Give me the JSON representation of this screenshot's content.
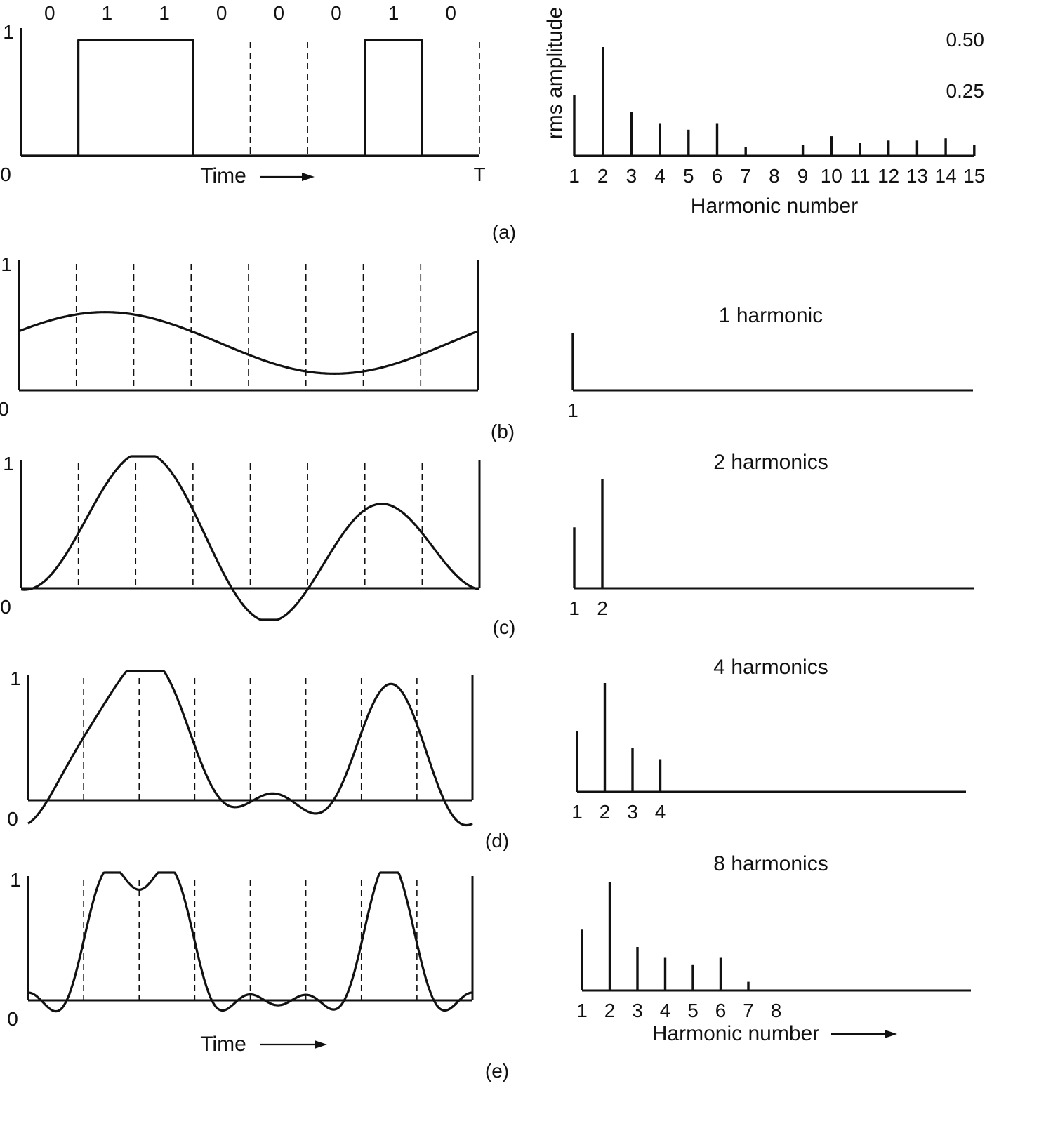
{
  "panels": [
    {
      "caption": "(a)",
      "time_plot": {
        "type": "step",
        "bits": [
          "0",
          "1",
          "1",
          "0",
          "0",
          "0",
          "1",
          "0"
        ],
        "y_top_label": "1",
        "origin_label": "0",
        "end_label": "T",
        "xlabel": "Time"
      },
      "spectrum": {
        "title": "",
        "ylabel": "rms amplitude",
        "ytick_labels": [
          "0.50",
          "0.25"
        ],
        "xlabel": "Harmonic number",
        "harmonic_labels": [
          "1",
          "2",
          "3",
          "4",
          "5",
          "6",
          "7",
          "8",
          "9",
          "10",
          "11",
          "12",
          "13",
          "14",
          "15"
        ]
      }
    },
    {
      "caption": "(b)",
      "time_plot": {
        "type": "approximation",
        "harmonics": 1,
        "y_top_label": "1",
        "origin_label": "0"
      },
      "spectrum": {
        "title": "1 harmonic",
        "harmonic_labels": [
          "1"
        ]
      }
    },
    {
      "caption": "(c)",
      "time_plot": {
        "type": "approximation",
        "harmonics": 2,
        "y_top_label": "1",
        "origin_label": "0"
      },
      "spectrum": {
        "title": "2 harmonics",
        "harmonic_labels": [
          "1",
          "2"
        ]
      }
    },
    {
      "caption": "(d)",
      "time_plot": {
        "type": "approximation",
        "harmonics": 4,
        "y_top_label": "1",
        "origin_label": "0"
      },
      "spectrum": {
        "title": "4 harmonics",
        "harmonic_labels": [
          "1",
          "2",
          "3",
          "4"
        ]
      }
    },
    {
      "caption": "(e)",
      "time_plot": {
        "type": "approximation",
        "harmonics": 8,
        "y_top_label": "1",
        "origin_label": "0",
        "xlabel": "Time"
      },
      "spectrum": {
        "title": "8 harmonics",
        "xlabel": "Harmonic number",
        "harmonic_labels": [
          "1",
          "2",
          "3",
          "4",
          "5",
          "6",
          "7",
          "8"
        ]
      }
    }
  ],
  "chart_data": {
    "type": "bar",
    "bit_pattern": [
      0,
      1,
      1,
      0,
      0,
      0,
      1,
      0
    ],
    "ylabel": "rms amplitude",
    "xlabel": "Harmonic number",
    "yticks": [
      0.25,
      0.5
    ],
    "categories": [
      1,
      2,
      3,
      4,
      5,
      6,
      7,
      8,
      9,
      10,
      11,
      12,
      13,
      14,
      15
    ],
    "values": [
      0.28,
      0.5,
      0.2,
      0.15,
      0.12,
      0.15,
      0.04,
      0.0,
      0.05,
      0.09,
      0.06,
      0.07,
      0.07,
      0.08,
      0.05
    ],
    "ylim": [
      0,
      0.55
    ]
  }
}
